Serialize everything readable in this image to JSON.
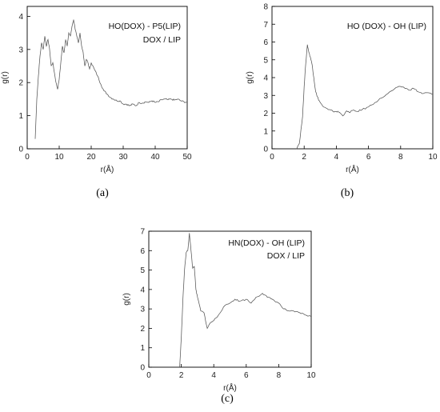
{
  "chart_data": [
    {
      "type": "line",
      "panel_label": "(a)",
      "annotations": [
        "HO(DOX) - P5(LIP)",
        "DOX / LIP"
      ],
      "xlabel": "r(Å)",
      "ylabel": "g(r)",
      "xlim": [
        0,
        50
      ],
      "ylim": [
        0,
        4.3
      ],
      "xticks": [
        0,
        10,
        20,
        30,
        40,
        50
      ],
      "yticks": [
        0,
        1,
        2,
        3,
        4
      ],
      "series": [
        {
          "x": [
            2.5,
            3,
            3.5,
            4,
            4.5,
            5,
            5.5,
            6,
            6.5,
            7,
            7.5,
            8,
            8.5,
            9,
            9.5,
            10,
            10.5,
            11,
            11.5,
            12,
            12.5,
            13,
            13.5,
            14,
            14.5,
            15,
            15.5,
            16,
            16.5,
            17,
            17.5,
            18,
            18.5,
            19,
            19.5,
            20,
            21,
            22,
            23,
            24,
            25,
            26,
            27,
            28,
            29,
            30,
            31,
            32,
            33,
            34,
            35,
            36,
            37,
            38,
            39,
            40,
            41,
            42,
            43,
            44,
            45,
            46,
            47,
            48,
            49,
            50
          ],
          "y": [
            0.3,
            1.5,
            2.2,
            2.8,
            3.2,
            3.0,
            3.4,
            3.1,
            3.3,
            3.0,
            2.5,
            2.6,
            2.3,
            2.0,
            1.8,
            2.1,
            2.6,
            3.1,
            2.9,
            3.3,
            3.1,
            3.5,
            3.4,
            3.7,
            3.9,
            3.6,
            3.4,
            3.2,
            3.5,
            3.1,
            2.9,
            2.5,
            2.7,
            2.6,
            2.4,
            2.6,
            2.4,
            2.2,
            1.95,
            1.75,
            1.65,
            1.55,
            1.5,
            1.45,
            1.45,
            1.35,
            1.35,
            1.3,
            1.35,
            1.3,
            1.4,
            1.38,
            1.42,
            1.4,
            1.45,
            1.4,
            1.42,
            1.48,
            1.5,
            1.48,
            1.5,
            1.47,
            1.5,
            1.45,
            1.42,
            1.4
          ]
        }
      ]
    },
    {
      "type": "line",
      "panel_label": "(b)",
      "annotations": [
        "HO (DOX) - OH (LIP)"
      ],
      "xlabel": "r(Å)",
      "ylabel": "g(r)",
      "xlim": [
        0,
        10
      ],
      "ylim": [
        0,
        8
      ],
      "xticks": [
        0,
        2,
        4,
        6,
        8,
        10
      ],
      "yticks": [
        0,
        1,
        2,
        3,
        4,
        5,
        6,
        7,
        8
      ],
      "series": [
        {
          "x": [
            1.5,
            1.7,
            1.9,
            2.0,
            2.1,
            2.2,
            2.3,
            2.4,
            2.5,
            2.6,
            2.7,
            2.8,
            3.0,
            3.2,
            3.5,
            3.8,
            4.0,
            4.2,
            4.4,
            4.6,
            4.8,
            5.0,
            5.3,
            5.6,
            6.0,
            6.4,
            6.8,
            7.2,
            7.6,
            8.0,
            8.2,
            8.5,
            8.8,
            9.1,
            9.4,
            9.7,
            10.0
          ],
          "y": [
            0,
            0.3,
            1.8,
            3.5,
            4.8,
            5.85,
            5.4,
            5.1,
            4.7,
            4.0,
            3.3,
            2.95,
            2.6,
            2.35,
            2.2,
            2.1,
            2.1,
            2.05,
            1.85,
            2.1,
            2.05,
            2.15,
            2.1,
            2.2,
            2.35,
            2.6,
            2.85,
            3.1,
            3.35,
            3.5,
            3.45,
            3.3,
            3.4,
            3.2,
            3.1,
            3.15,
            3.05
          ]
        }
      ]
    },
    {
      "type": "line",
      "panel_label": "(c)",
      "annotations": [
        "HN(DOX) - OH (LIP)",
        "DOX / LIP"
      ],
      "xlabel": "r(Å)",
      "ylabel": "g(r)",
      "xlim": [
        0,
        10
      ],
      "ylim": [
        0,
        7
      ],
      "xticks": [
        0,
        2,
        4,
        6,
        8,
        10
      ],
      "yticks": [
        0,
        1,
        2,
        3,
        4,
        5,
        6,
        7
      ],
      "series": [
        {
          "x": [
            1.9,
            2.0,
            2.1,
            2.2,
            2.3,
            2.4,
            2.5,
            2.6,
            2.7,
            2.8,
            2.9,
            3.0,
            3.2,
            3.4,
            3.6,
            3.8,
            4.0,
            4.3,
            4.6,
            5.0,
            5.3,
            5.6,
            6.0,
            6.3,
            6.6,
            7.0,
            7.3,
            7.6,
            8.0,
            8.3,
            8.6,
            9.0,
            9.3,
            9.6,
            10.0
          ],
          "y": [
            0,
            1.5,
            3.5,
            5.0,
            5.9,
            6.0,
            6.9,
            6.0,
            5.1,
            5.2,
            4.0,
            3.6,
            2.9,
            2.8,
            2.0,
            2.3,
            2.4,
            2.7,
            3.1,
            3.3,
            3.5,
            3.4,
            3.5,
            3.3,
            3.6,
            3.8,
            3.6,
            3.5,
            3.3,
            3.0,
            2.9,
            2.85,
            2.8,
            2.7,
            2.6
          ]
        }
      ]
    }
  ]
}
